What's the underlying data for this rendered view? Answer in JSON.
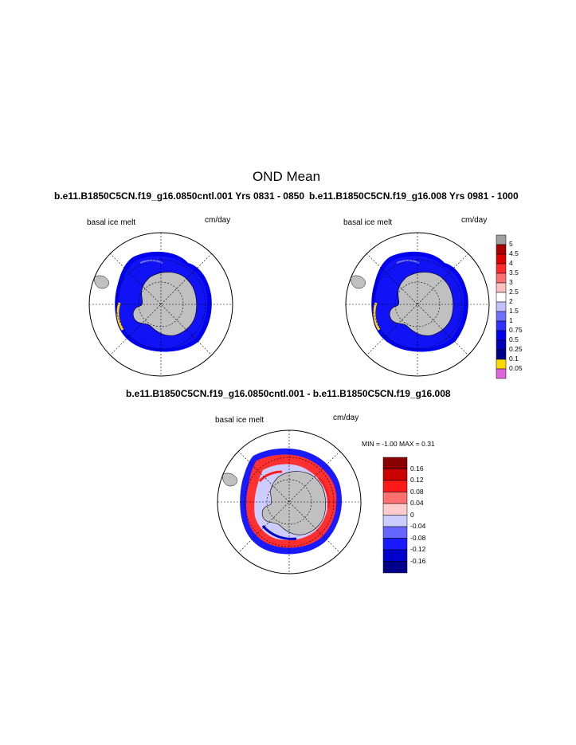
{
  "title": "OND Mean",
  "panels": [
    {
      "title": "b.e11.B1850C5CN.f19_g16.0850cntl.001  Yrs 0831 - 0850",
      "variable": "basal ice melt",
      "units": "cm/day"
    },
    {
      "title": "b.e11.B1850C5CN.f19_g16.008  Yrs 0981 - 1000",
      "variable": "basal ice melt",
      "units": "cm/day"
    },
    {
      "title": "b.e11.B1850C5CN.f19_g16.0850cntl.001 - b.e11.B1850C5CN.f19_g16.008",
      "variable": "basal ice melt",
      "units": "cm/day",
      "minmax": "MIN =  -1.00 MAX =   0.31"
    }
  ],
  "colorbar_top": {
    "labels": [
      "5",
      "4.5",
      "4",
      "3.5",
      "3",
      "2.5",
      "2",
      "1.5",
      "1",
      "0.75",
      "0.5",
      "0.25",
      "0.1",
      "0.05"
    ],
    "colors": [
      "#a0a0a0",
      "#aa0000",
      "#dd0000",
      "#ff2a2a",
      "#ff7070",
      "#ffc0c0",
      "#ffffff",
      "#c0c0ff",
      "#7070ff",
      "#3030ff",
      "#0000ee",
      "#0000bb",
      "#000088",
      "#ffd700",
      "#dd66dd"
    ]
  },
  "colorbar_diff": {
    "labels": [
      "0.16",
      "0.12",
      "0.08",
      "0.04",
      "0",
      "-0.04",
      "-0.08",
      "-0.12",
      "-0.16"
    ],
    "colors": [
      "#8b0000",
      "#cc0000",
      "#ff1a1a",
      "#ff7070",
      "#ffcccc",
      "#ccccff",
      "#6666ff",
      "#1a1aff",
      "#0000cc",
      "#00008b"
    ]
  }
}
